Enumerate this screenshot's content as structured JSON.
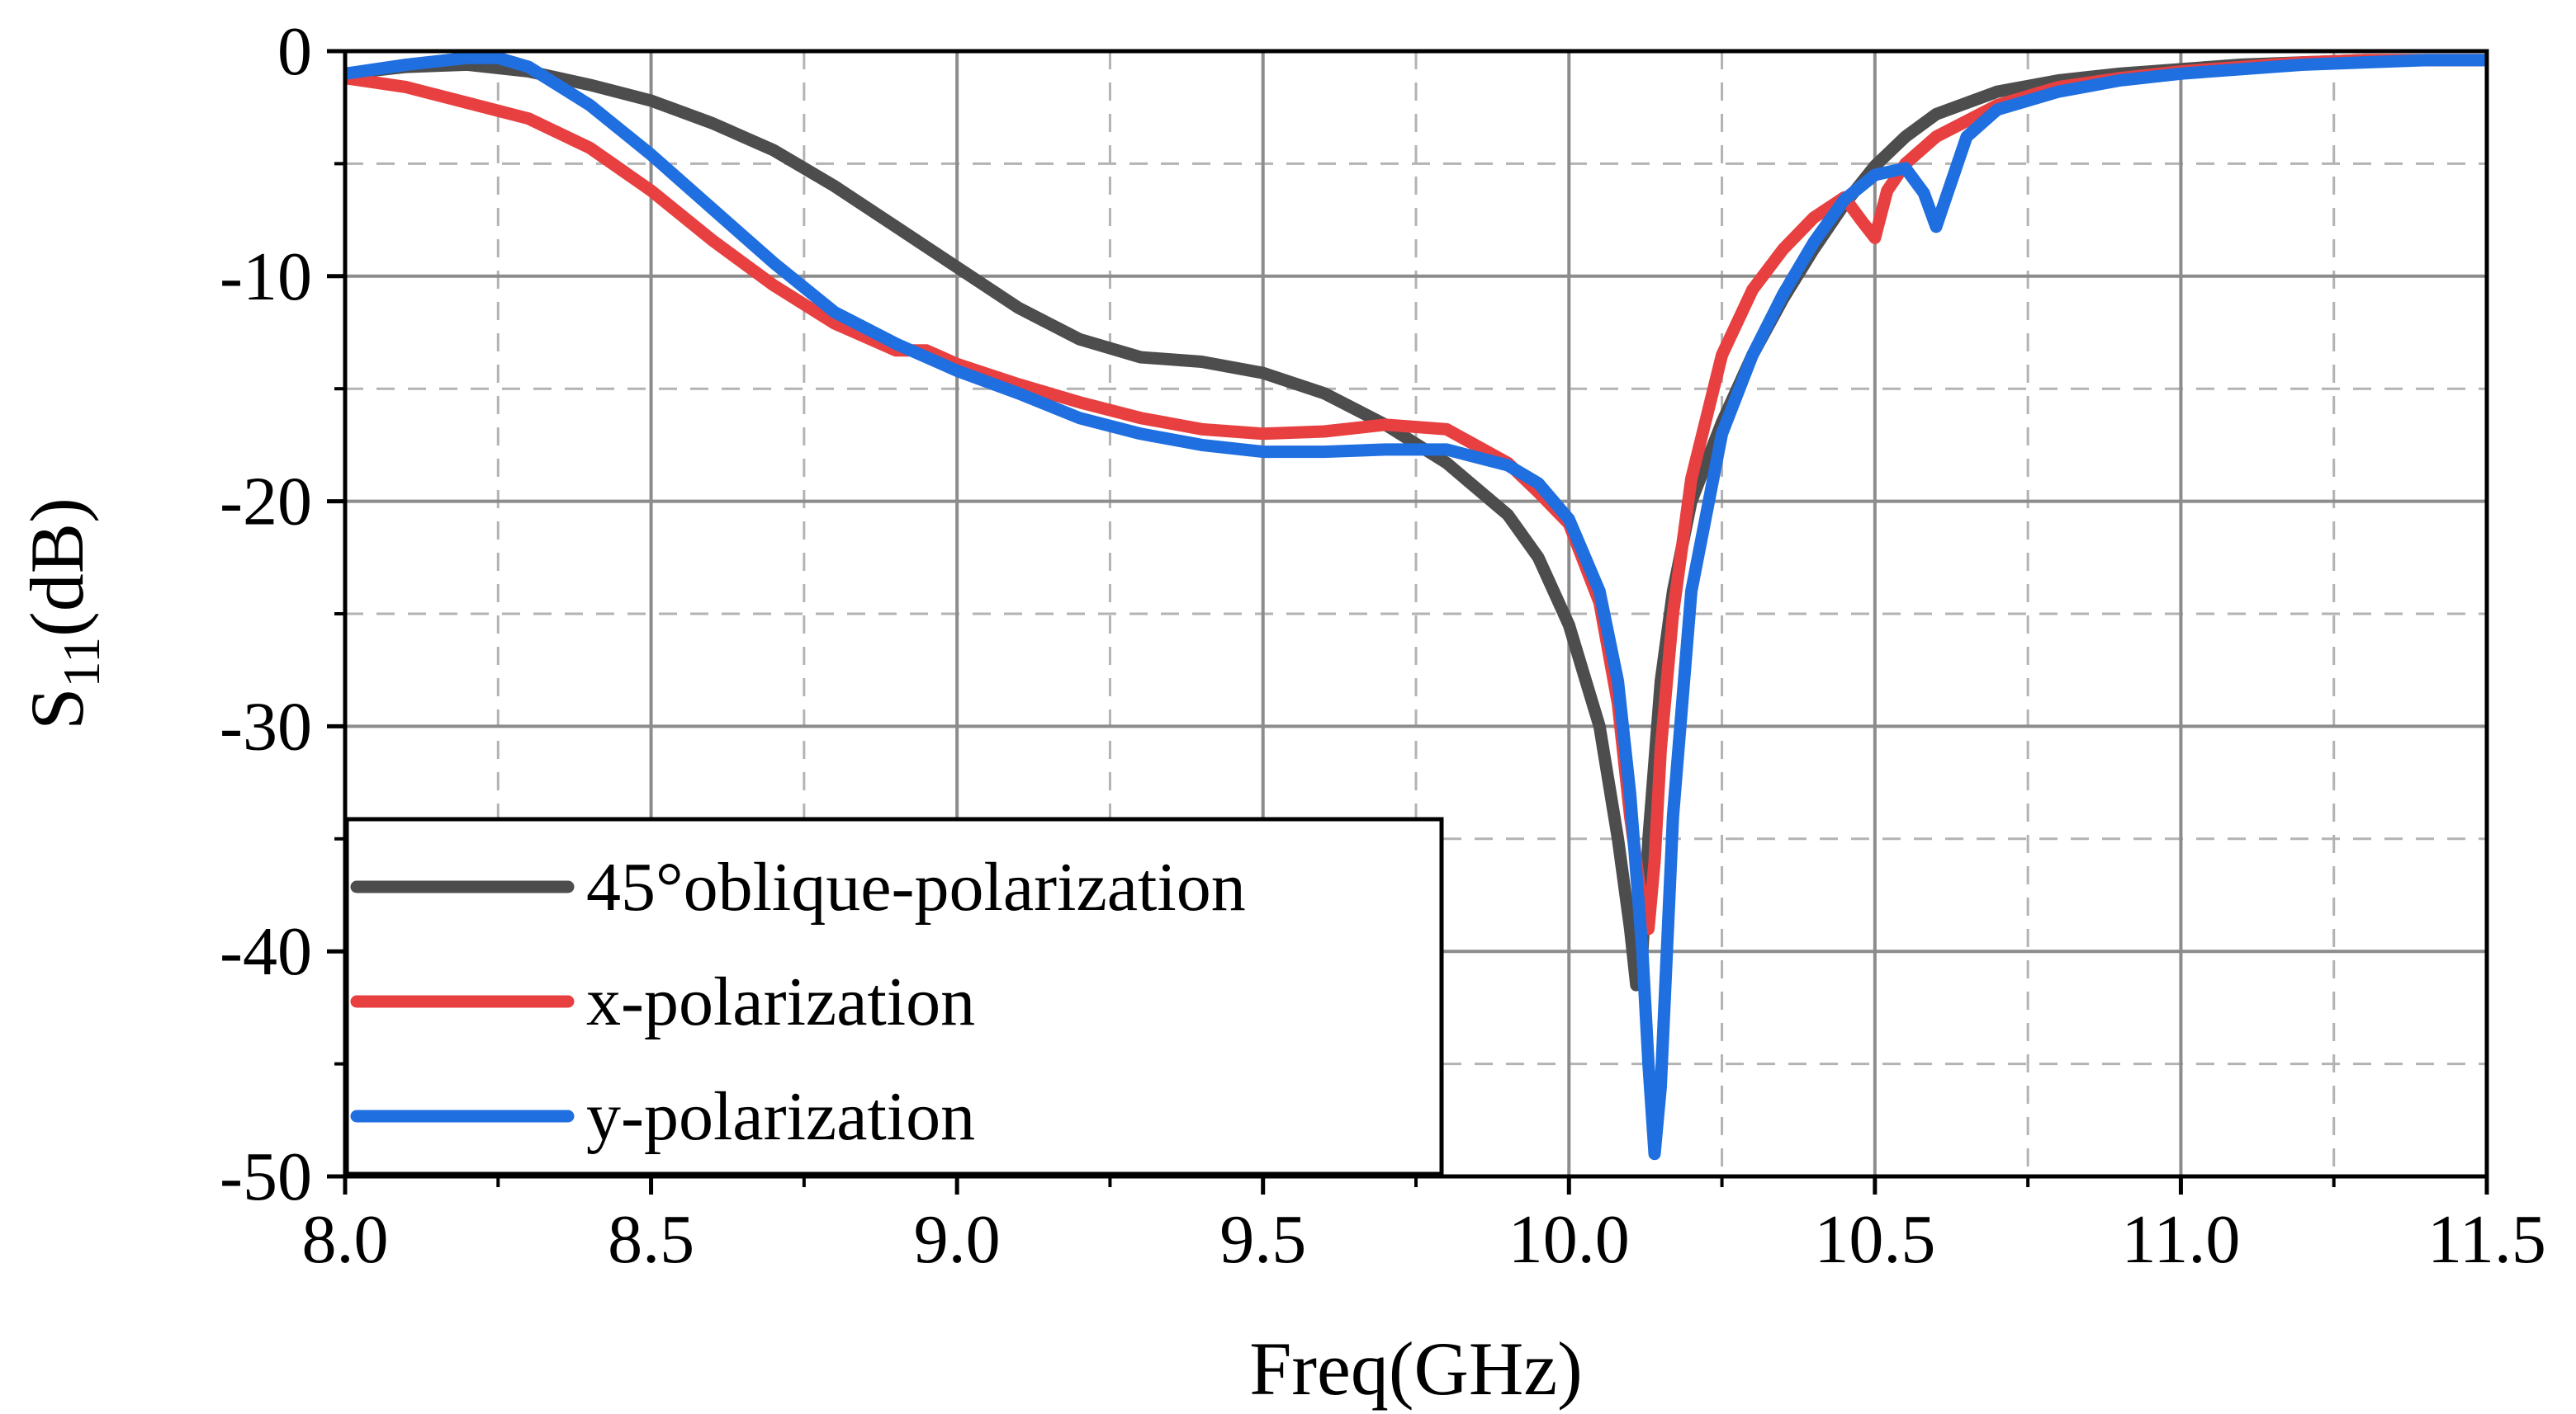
{
  "chart_data": {
    "type": "line",
    "title": "",
    "xlabel": "Freq(GHz)",
    "ylabel_main": "S",
    "ylabel_sub": "11",
    "ylabel_unit": "(dB)",
    "xlim": [
      8.0,
      11.5
    ],
    "ylim": [
      -50,
      0
    ],
    "xticks": [
      8.0,
      8.5,
      9.0,
      9.5,
      10.0,
      10.5,
      11.0,
      11.5
    ],
    "xtick_labels": [
      "8.0",
      "8.5",
      "9.0",
      "9.5",
      "10.0",
      "10.5",
      "11.0",
      "11.5"
    ],
    "yticks": [
      0,
      -10,
      -20,
      -30,
      -40,
      -50
    ],
    "ytick_labels": [
      "0",
      "-10",
      "-20",
      "-30",
      "-40",
      "-50"
    ],
    "grid": true,
    "minor_grid": "dashed",
    "legend_position": "bottom-left",
    "series": [
      {
        "name": "45°oblique-polarization",
        "color": "#4d4d4d",
        "x": [
          8.0,
          8.1,
          8.2,
          8.3,
          8.4,
          8.5,
          8.6,
          8.7,
          8.8,
          8.9,
          9.0,
          9.1,
          9.2,
          9.3,
          9.4,
          9.5,
          9.6,
          9.7,
          9.8,
          9.9,
          9.95,
          10.0,
          10.05,
          10.08,
          10.1,
          10.11,
          10.12,
          10.13,
          10.15,
          10.17,
          10.2,
          10.25,
          10.3,
          10.35,
          10.4,
          10.45,
          10.5,
          10.55,
          10.6,
          10.7,
          10.8,
          10.9,
          11.0,
          11.1,
          11.2,
          11.3,
          11.4,
          11.5
        ],
        "y": [
          -1.0,
          -0.7,
          -0.6,
          -0.9,
          -1.5,
          -2.2,
          -3.2,
          -4.4,
          -6.0,
          -7.8,
          -9.6,
          -11.4,
          -12.8,
          -13.6,
          -13.8,
          -14.3,
          -15.2,
          -16.6,
          -18.3,
          -20.6,
          -22.5,
          -25.5,
          -30.0,
          -35.0,
          -39.0,
          -41.5,
          -40.0,
          -35.0,
          -28.0,
          -24.0,
          -20.0,
          -16.5,
          -13.5,
          -11.0,
          -8.8,
          -6.8,
          -5.1,
          -3.8,
          -2.8,
          -1.8,
          -1.3,
          -1.0,
          -0.8,
          -0.6,
          -0.5,
          -0.4,
          -0.4,
          -0.4
        ]
      },
      {
        "name": "x-polarization",
        "color": "#e84040",
        "x": [
          8.0,
          8.1,
          8.2,
          8.3,
          8.4,
          8.5,
          8.6,
          8.7,
          8.8,
          8.9,
          8.95,
          9.0,
          9.1,
          9.2,
          9.3,
          9.4,
          9.5,
          9.6,
          9.7,
          9.8,
          9.9,
          9.95,
          10.0,
          10.05,
          10.08,
          10.1,
          10.12,
          10.13,
          10.14,
          10.15,
          10.17,
          10.2,
          10.25,
          10.3,
          10.35,
          10.4,
          10.45,
          10.48,
          10.5,
          10.52,
          10.55,
          10.6,
          10.7,
          10.8,
          10.9,
          11.0,
          11.1,
          11.2,
          11.3,
          11.4,
          11.5
        ],
        "y": [
          -1.2,
          -1.6,
          -2.3,
          -3.0,
          -4.3,
          -6.2,
          -8.4,
          -10.4,
          -12.1,
          -13.3,
          -13.3,
          -13.9,
          -14.8,
          -15.6,
          -16.3,
          -16.8,
          -17.0,
          -16.9,
          -16.6,
          -16.8,
          -18.3,
          -19.6,
          -21.0,
          -24.5,
          -29.0,
          -34.0,
          -38.0,
          -39.0,
          -36.0,
          -31.0,
          -25.0,
          -19.0,
          -13.5,
          -10.6,
          -8.8,
          -7.4,
          -6.5,
          -7.6,
          -8.3,
          -6.2,
          -5.0,
          -3.8,
          -2.4,
          -1.6,
          -1.2,
          -0.9,
          -0.7,
          -0.5,
          -0.4,
          -0.4,
          -0.4
        ]
      },
      {
        "name": "y-polarization",
        "color": "#1f6fe0",
        "x": [
          8.0,
          8.1,
          8.2,
          8.25,
          8.3,
          8.4,
          8.5,
          8.6,
          8.7,
          8.8,
          8.9,
          9.0,
          9.1,
          9.2,
          9.3,
          9.4,
          9.5,
          9.6,
          9.7,
          9.8,
          9.9,
          9.95,
          10.0,
          10.05,
          10.08,
          10.1,
          10.12,
          10.13,
          10.14,
          10.15,
          10.17,
          10.2,
          10.25,
          10.3,
          10.35,
          10.4,
          10.45,
          10.5,
          10.55,
          10.58,
          10.6,
          10.62,
          10.65,
          10.7,
          10.8,
          10.9,
          11.0,
          11.1,
          11.2,
          11.3,
          11.4,
          11.5
        ],
        "y": [
          -1.0,
          -0.6,
          -0.3,
          -0.3,
          -0.7,
          -2.4,
          -4.6,
          -7.0,
          -9.4,
          -11.6,
          -13.0,
          -14.2,
          -15.2,
          -16.3,
          -17.0,
          -17.5,
          -17.8,
          -17.8,
          -17.7,
          -17.7,
          -18.4,
          -19.2,
          -20.8,
          -24.0,
          -28.0,
          -33.0,
          -40.0,
          -45.0,
          -49.0,
          -46.0,
          -34.0,
          -24.0,
          -17.0,
          -13.5,
          -10.8,
          -8.5,
          -6.6,
          -5.5,
          -5.2,
          -6.3,
          -7.8,
          -6.2,
          -3.8,
          -2.6,
          -1.8,
          -1.3,
          -1.0,
          -0.8,
          -0.6,
          -0.5,
          -0.4,
          -0.4
        ]
      }
    ]
  }
}
